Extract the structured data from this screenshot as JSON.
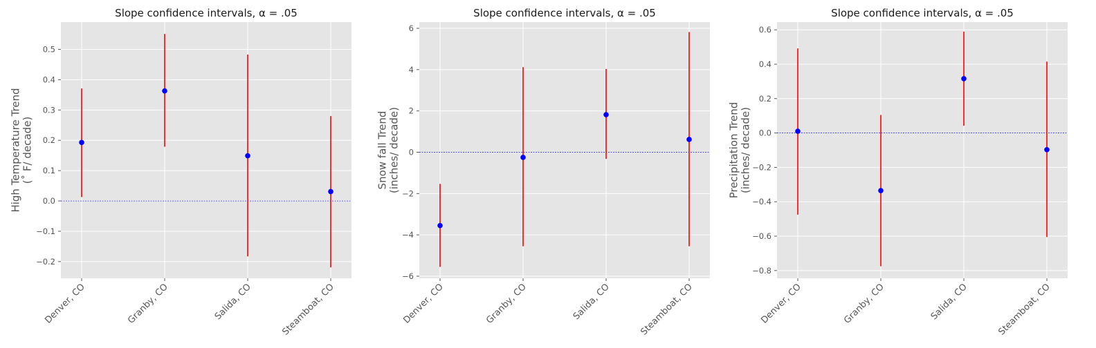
{
  "chart_data": [
    {
      "type": "errorbar",
      "title": "Slope confidence intervals, α = .05",
      "ylabel": [
        "High Temperature Trend",
        "(˚ F/ decade)"
      ],
      "categories": [
        "Denver, CO",
        "Granby, CO",
        "Salida, CO",
        "Steamboat, CO"
      ],
      "ylim": [
        -0.255,
        0.59
      ],
      "yticks": [
        -0.2,
        -0.1,
        0.0,
        0.1,
        0.2,
        0.3,
        0.4,
        0.5
      ],
      "ytick_labels": [
        "−0.2",
        "−0.1",
        "0.0",
        "0.1",
        "0.2",
        "0.3",
        "0.4",
        "0.5"
      ],
      "estimates": [
        0.193,
        0.363,
        0.149,
        0.031
      ],
      "lower": [
        0.013,
        0.179,
        -0.183,
        -0.219
      ],
      "upper": [
        0.371,
        0.551,
        0.483,
        0.28
      ],
      "reference_line": 0.0,
      "grid": true,
      "colors": {
        "interval": "#ff0000",
        "point": "#0000ff",
        "reference": "#0000ff",
        "background": "#e5e5e5",
        "grid": "#ffffff"
      }
    },
    {
      "type": "errorbar",
      "title": "Slope confidence intervals, α = .05",
      "ylabel": [
        "Snow fall Trend",
        "(inches/ decade)"
      ],
      "categories": [
        "Denver, CO",
        "Granby, CO",
        "Salida, CO",
        "Steamboat, CO"
      ],
      "ylim": [
        -6.1,
        6.3
      ],
      "yticks": [
        -6,
        -4,
        -2,
        0,
        2,
        4,
        6
      ],
      "ytick_labels": [
        "−6",
        "−4",
        "−2",
        "0",
        "2",
        "4",
        "6"
      ],
      "estimates": [
        -3.55,
        -0.25,
        1.82,
        0.62
      ],
      "lower": [
        -5.55,
        -4.55,
        -0.32,
        -4.55
      ],
      "upper": [
        -1.53,
        4.12,
        4.03,
        5.82
      ],
      "reference_line": 0,
      "grid": true,
      "colors": {
        "interval": "#ff0000",
        "point": "#0000ff",
        "reference": "#0000ff",
        "background": "#e5e5e5",
        "grid": "#ffffff"
      }
    },
    {
      "type": "errorbar",
      "title": "Slope confidence intervals, α = .05",
      "ylabel": [
        "Precipitation Trend",
        "(inches/ decade)"
      ],
      "categories": [
        "Denver, CO",
        "Granby, CO",
        "Salida, CO",
        "Steamboat, CO"
      ],
      "ylim": [
        -0.845,
        0.645
      ],
      "yticks": [
        -0.8,
        -0.6,
        -0.4,
        -0.2,
        0.0,
        0.2,
        0.4,
        0.6
      ],
      "ytick_labels": [
        "−0.8",
        "−0.6",
        "−0.4",
        "−0.2",
        "0.0",
        "0.2",
        "0.4",
        "0.6"
      ],
      "estimates": [
        0.01,
        -0.335,
        0.316,
        -0.097
      ],
      "lower": [
        -0.475,
        -0.775,
        0.042,
        -0.605
      ],
      "upper": [
        0.492,
        0.105,
        0.59,
        0.415
      ],
      "reference_line": 0.0,
      "grid": true,
      "colors": {
        "interval": "#ff0000",
        "point": "#0000ff",
        "reference": "#0000ff",
        "background": "#e5e5e5",
        "grid": "#ffffff"
      }
    }
  ]
}
